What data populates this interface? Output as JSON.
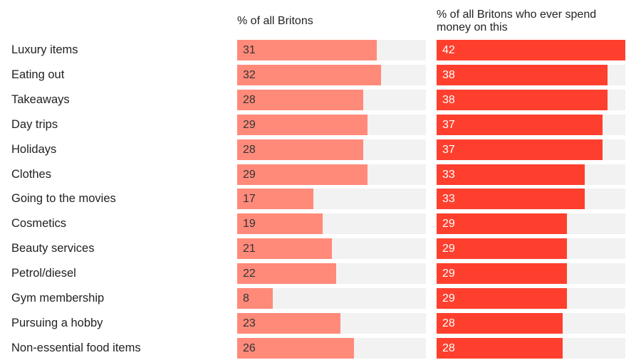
{
  "chart_data": {
    "type": "bar",
    "orientation": "horizontal",
    "categories": [
      "Luxury items",
      "Eating out",
      "Takeaways",
      "Day trips",
      "Holidays",
      "Clothes",
      "Going to the movies",
      "Cosmetics",
      "Beauty services",
      "Petrol/diesel",
      "Gym membership",
      "Pursuing a hobby",
      "Non-essential food items"
    ],
    "series": [
      {
        "name": "% of all Britons",
        "color": "#ff8a7a",
        "values": [
          31,
          32,
          28,
          29,
          28,
          29,
          17,
          19,
          21,
          22,
          8,
          23,
          26
        ]
      },
      {
        "name": "% of all Britons who ever spend money on this",
        "color": "#ff3f2e",
        "values": [
          42,
          38,
          38,
          37,
          37,
          33,
          33,
          29,
          29,
          29,
          29,
          28,
          28
        ]
      }
    ],
    "xlim": [
      0,
      42
    ],
    "track_color": "#f2f2f2",
    "grid": false,
    "data_labels": true
  }
}
